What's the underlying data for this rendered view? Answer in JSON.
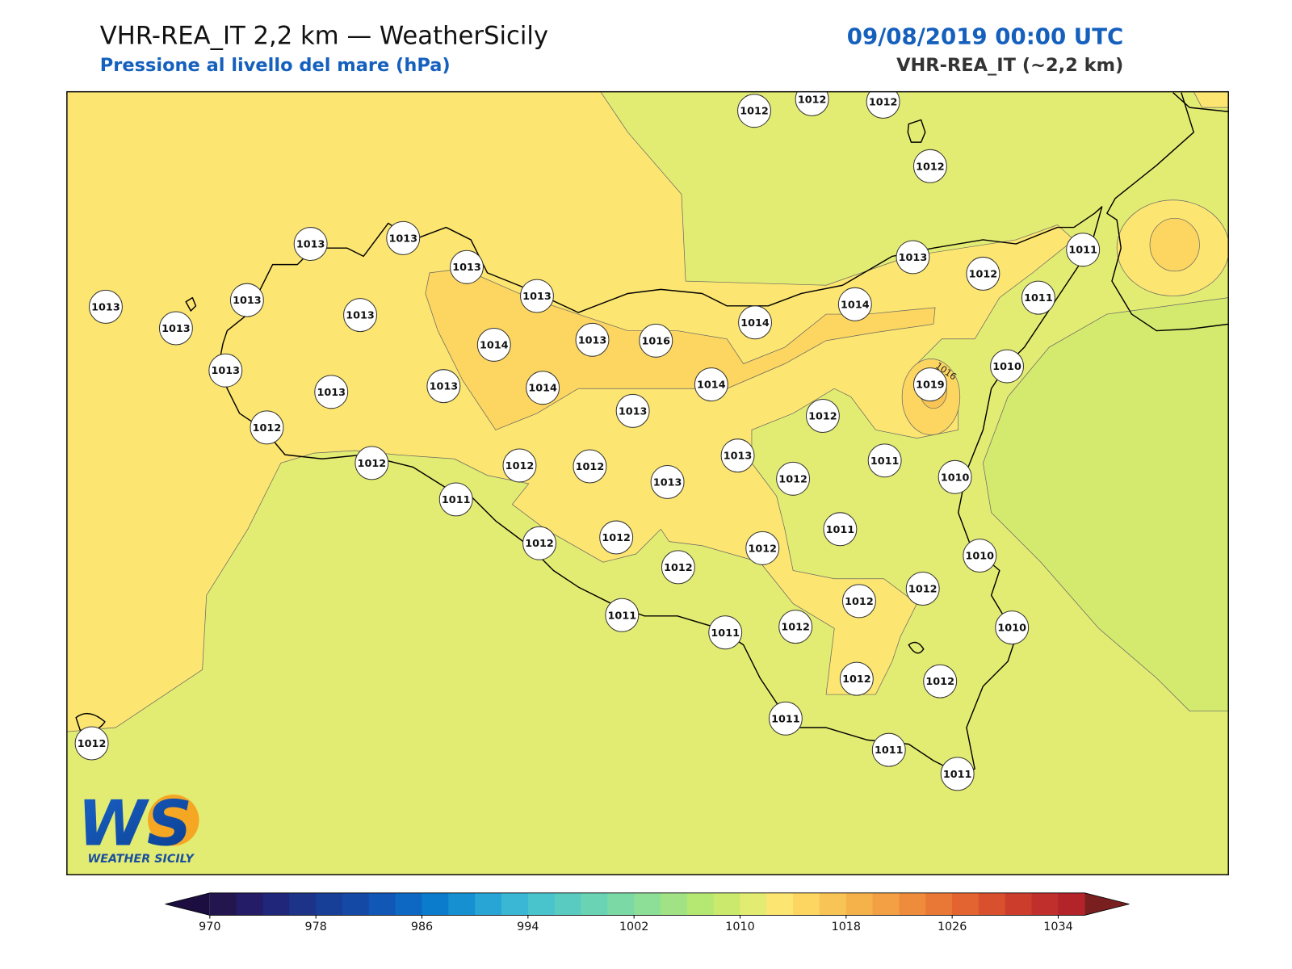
{
  "header": {
    "title": "VHR-REA_IT 2,2 km — WeatherSicily",
    "subtitle": "Pressione al livello del mare (hPa)",
    "valid_time": "09/08/2019 00:00 UTC",
    "model": "VHR-REA_IT (~2,2 km)"
  },
  "stations": [
    1012,
    1012,
    1012,
    1012,
    1013,
    1013,
    1013,
    1013,
    1013,
    1013,
    1013,
    1013,
    1013,
    1013,
    1014,
    1013,
    1016,
    1014,
    1014,
    1013,
    1012,
    1011,
    1011,
    1010,
    1019,
    1013,
    1014,
    1014,
    1013,
    1012,
    1012,
    1012,
    1012,
    1012,
    1013,
    1013,
    1012,
    1011,
    1010,
    1011,
    1011,
    1012,
    1012,
    1012,
    1012,
    1010,
    1012,
    1012,
    1011,
    1011,
    1012,
    1010,
    1012,
    1012,
    1011,
    1011,
    1011,
    1012
  ],
  "contour_label": "1016",
  "logo": {
    "mark": "WS",
    "text": "WEATHER SICILY"
  },
  "colorbar": {
    "ticks": [
      970,
      978,
      986,
      994,
      1002,
      1010,
      1018,
      1026,
      1034
    ],
    "colors": [
      "#23164f",
      "#241c66",
      "#20267a",
      "#1c3388",
      "#183f98",
      "#1449a6",
      "#1158b6",
      "#0d68c4",
      "#0b7ccc",
      "#1690d1",
      "#28a4d5",
      "#39b7d4",
      "#49c4cc",
      "#59cbc1",
      "#69d3b4",
      "#7bd9a5",
      "#8dde96",
      "#a1e384",
      "#b5e773",
      "#cae96d",
      "#e3ec72",
      "#fce570",
      "#fcd660",
      "#f8c455",
      "#f5b24b",
      "#f2a043",
      "#ee8c3c",
      "#e97836",
      "#e36431",
      "#d9502e",
      "#cd3d2c",
      "#c02f2b",
      "#b2232a"
    ],
    "under_color": "#1c0e40",
    "over_color": "#7a1f1f"
  }
}
